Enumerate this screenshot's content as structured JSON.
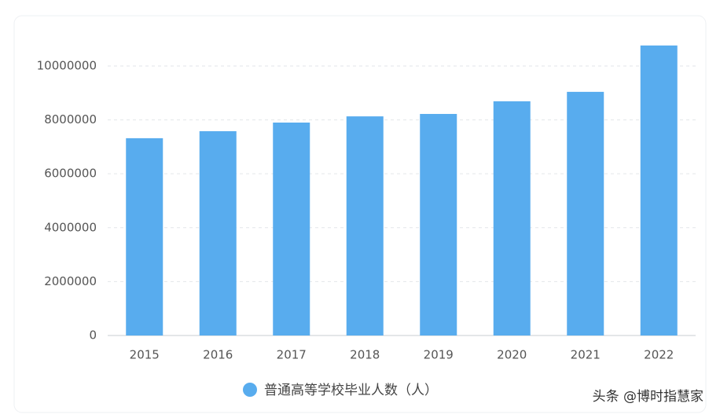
{
  "chart_data": {
    "type": "bar",
    "categories": [
      "2015",
      "2016",
      "2017",
      "2018",
      "2019",
      "2020",
      "2021",
      "2022"
    ],
    "series": [
      {
        "name": "普通高等学校毕业人数（人）",
        "color": "#58acee",
        "values": [
          7320000,
          7580000,
          7900000,
          8130000,
          8220000,
          8690000,
          9040000,
          10760000
        ]
      }
    ],
    "ylim": [
      0,
      11500000
    ],
    "yticks": [
      0,
      2000000,
      4000000,
      6000000,
      8000000,
      10000000
    ],
    "grid": true,
    "legend": "bottom"
  },
  "watermark": "头条 @博时指慧家"
}
